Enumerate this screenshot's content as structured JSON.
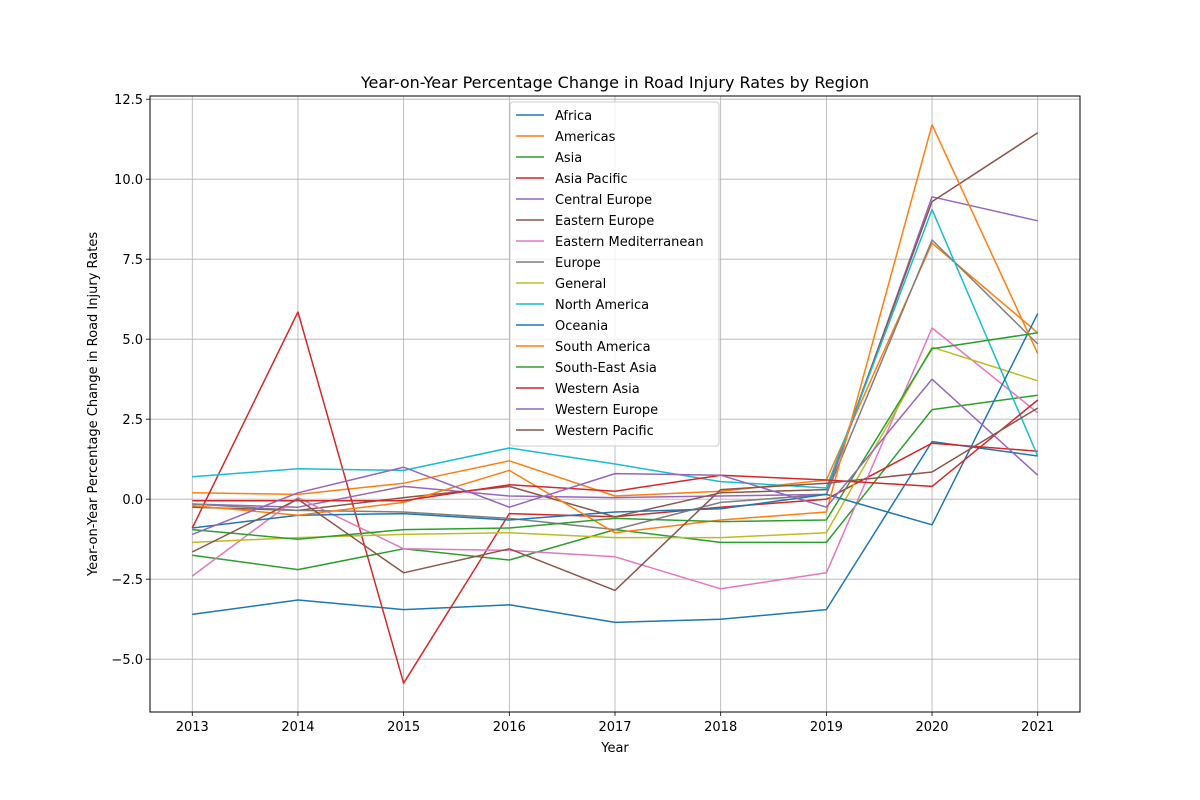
{
  "chart_data": {
    "type": "line",
    "title": "Year-on-Year Percentage Change in Road Injury Rates by Region",
    "xlabel": "Year",
    "ylabel": "Year-on-Year Percentage Change in Road Injury Rates",
    "x": [
      2013,
      2014,
      2015,
      2016,
      2017,
      2018,
      2019,
      2020,
      2021
    ],
    "xlim": [
      2012.6,
      2021.4
    ],
    "ylim": [
      -6.65,
      12.6
    ],
    "yticks": [
      -5.0,
      -2.5,
      0.0,
      2.5,
      5.0,
      7.5,
      10.0,
      12.5
    ],
    "ytick_labels": [
      "−5.0",
      "−2.5",
      "0.0",
      "2.5",
      "5.0",
      "7.5",
      "10.0",
      "12.5"
    ],
    "grid": true,
    "legend_position": "top-center",
    "series": [
      {
        "name": "Africa",
        "color": "#1f77b4",
        "values": [
          -3.6,
          -3.15,
          -3.45,
          -3.3,
          -3.85,
          -3.75,
          -3.45,
          1.8,
          1.35
        ]
      },
      {
        "name": "Americas",
        "color": "#ff7f0e",
        "values": [
          0.2,
          0.15,
          0.5,
          1.2,
          0.1,
          0.25,
          0.6,
          8.0,
          5.2
        ]
      },
      {
        "name": "Asia",
        "color": "#2ca02c",
        "values": [
          -1.75,
          -2.2,
          -1.55,
          -1.9,
          -0.95,
          -1.35,
          -1.35,
          2.8,
          3.25
        ]
      },
      {
        "name": "Asia Pacific",
        "color": "#d62728",
        "values": [
          -0.9,
          5.85,
          -5.75,
          -0.45,
          -0.55,
          -0.25,
          0.0,
          1.75,
          1.5
        ]
      },
      {
        "name": "Central Europe",
        "color": "#9467bd",
        "values": [
          -0.15,
          -0.25,
          0.4,
          0.1,
          0.05,
          0.1,
          0.15,
          9.45,
          8.7
        ]
      },
      {
        "name": "Eastern Europe",
        "color": "#8c564b",
        "values": [
          -0.25,
          -0.35,
          0.05,
          0.4,
          -0.55,
          0.2,
          0.3,
          9.3,
          11.45
        ]
      },
      {
        "name": "Eastern Mediterranean",
        "color": "#e377c2",
        "values": [
          -2.4,
          0.05,
          -1.55,
          -1.6,
          -1.8,
          -2.8,
          -2.3,
          5.35,
          2.7
        ]
      },
      {
        "name": "Europe",
        "color": "#7f7f7f",
        "values": [
          -0.15,
          -0.35,
          -0.4,
          -0.6,
          -0.95,
          -0.1,
          0.15,
          8.1,
          4.85
        ]
      },
      {
        "name": "General",
        "color": "#bcbd22",
        "values": [
          -1.35,
          -1.2,
          -1.1,
          -1.05,
          -1.2,
          -1.2,
          -1.05,
          4.75,
          3.7
        ]
      },
      {
        "name": "North America",
        "color": "#17becf",
        "values": [
          0.7,
          0.95,
          0.9,
          1.6,
          1.1,
          0.55,
          0.35,
          9.05,
          1.35
        ]
      },
      {
        "name": "Oceania",
        "color": "#1f77b4",
        "values": [
          -0.9,
          -0.5,
          -0.45,
          -0.65,
          -0.4,
          -0.3,
          0.15,
          -0.8,
          5.8
        ]
      },
      {
        "name": "South America",
        "color": "#ff7f0e",
        "values": [
          -0.2,
          -0.5,
          -0.1,
          0.9,
          -1.05,
          -0.65,
          -0.4,
          11.7,
          4.55
        ]
      },
      {
        "name": "South-East Asia",
        "color": "#2ca02c",
        "values": [
          -0.95,
          -1.25,
          -0.95,
          -0.9,
          -0.6,
          -0.7,
          -0.65,
          4.7,
          5.2
        ]
      },
      {
        "name": "Western Asia",
        "color": "#d62728",
        "values": [
          -0.05,
          -0.05,
          -0.05,
          0.45,
          0.25,
          0.75,
          0.6,
          0.4,
          3.1
        ]
      },
      {
        "name": "Western Europe",
        "color": "#9467bd",
        "values": [
          -1.1,
          0.2,
          1.0,
          -0.25,
          0.8,
          0.75,
          -0.25,
          3.75,
          0.75
        ]
      },
      {
        "name": "Western Pacific",
        "color": "#8c564b",
        "values": [
          -1.65,
          0.0,
          -2.3,
          -1.55,
          -2.85,
          0.3,
          0.5,
          0.85,
          2.85
        ]
      }
    ]
  }
}
